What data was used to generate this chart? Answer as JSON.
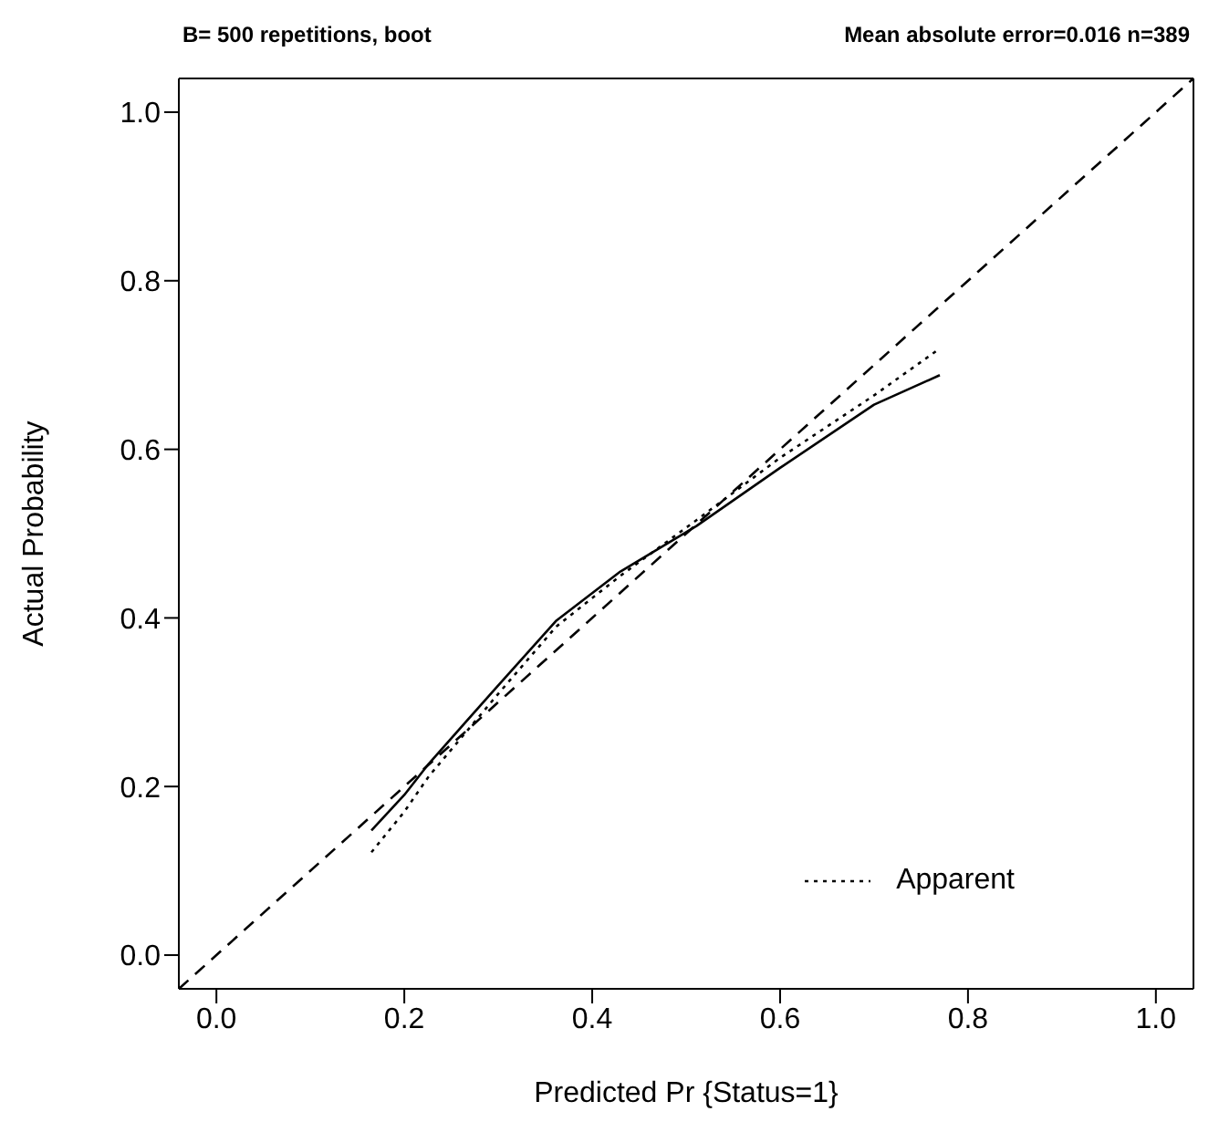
{
  "chart_data": {
    "type": "line",
    "xlabel": "Predicted Pr  {Status=1}",
    "ylabel": "Actual Probability",
    "annotations": [
      "B= 500 repetitions, boot",
      "Mean absolute error=0.016 n=389"
    ],
    "xlim": [
      -0.04,
      1.04
    ],
    "ylim": [
      -0.04,
      1.04
    ],
    "xticks": [
      {
        "value": 0,
        "label": "0.0"
      },
      {
        "value": 0.2,
        "label": "0.2"
      },
      {
        "value": 0.4,
        "label": "0.4"
      },
      {
        "value": 0.6,
        "label": "0.6"
      },
      {
        "value": 0.8,
        "label": "0.8"
      },
      {
        "value": 1,
        "label": "1.0"
      }
    ],
    "yticks": [
      {
        "value": 0,
        "label": "0.0"
      },
      {
        "value": 0.2,
        "label": "0.2"
      },
      {
        "value": 0.4,
        "label": "0.4"
      },
      {
        "value": 0.6,
        "label": "0.6"
      },
      {
        "value": 0.8,
        "label": "0.8"
      },
      {
        "value": 1,
        "label": "1.0"
      }
    ],
    "grid": false,
    "legend": "bottom right",
    "marker": "none",
    "series": [
      {
        "color": "#000000",
        "line_style": "dashed",
        "x": [
          -0.04,
          1.04
        ],
        "values": [
          -0.04,
          1.04
        ]
      },
      {
        "name": "Apparent",
        "color": "#000000",
        "line_style": "dotted",
        "x": [
          0.165,
          0.2,
          0.226,
          0.3,
          0.362,
          0.43,
          0.511,
          0.6,
          0.7,
          0.768
        ],
        "values": [
          0.122,
          0.17,
          0.212,
          0.31,
          0.39,
          0.45,
          0.516,
          0.59,
          0.664,
          0.718
        ]
      },
      {
        "color": "#000000",
        "line_style": "solid",
        "x": [
          0.165,
          0.2,
          0.226,
          0.3,
          0.362,
          0.43,
          0.511,
          0.6,
          0.7,
          0.77
        ],
        "values": [
          0.148,
          0.19,
          0.227,
          0.32,
          0.397,
          0.455,
          0.509,
          0.578,
          0.653,
          0.688
        ]
      }
    ]
  }
}
